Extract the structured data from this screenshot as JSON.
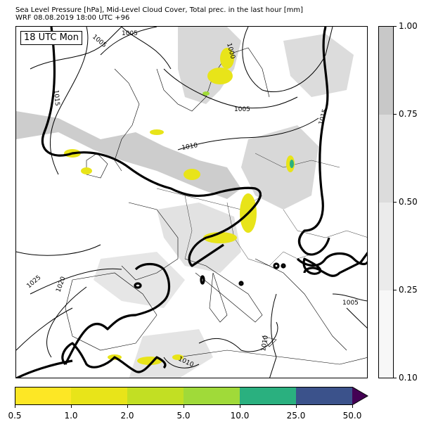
{
  "title_line1": "Sea Level Pressure [hPa], Mid-Level Cloud Cover, Total prec. in the last hour [mm]",
  "title_line2": "WRF 08.08.2019 18:00 UTC +96",
  "time_label": "18 UTC Mon",
  "cloud_colorbar": {
    "ticks": [
      "1.00",
      "0.75",
      "0.50",
      "0.25",
      "0.10"
    ],
    "colors": [
      "#c8c8c8",
      "#dcdcdc",
      "#ebebeb",
      "#f7f7f7"
    ]
  },
  "precip_colorbar": {
    "ticks": [
      "0.5",
      "1.0",
      "2.0",
      "5.0",
      "10.0",
      "25.0",
      "50.0"
    ],
    "colors": [
      "#fde725",
      "#e8e419",
      "#c2df23",
      "#a0da39",
      "#2ab07f",
      "#3b528b",
      "#440154"
    ]
  },
  "isobar_labels": [
    "1000",
    "1005",
    "1005",
    "1005",
    "1010",
    "1010",
    "1010",
    "1015",
    "1015",
    "1020",
    "1025",
    "1005"
  ],
  "chart_data": {
    "type": "map",
    "title": "Sea Level Pressure [hPa], Mid-Level Cloud Cover, Total prec. in the last hour [mm]",
    "subtitle": "WRF 08.08.2019 18:00 UTC +96",
    "fields": [
      "Sea Level Pressure [hPa]",
      "Mid-Level Cloud Cover",
      "Total prec. in the last hour [mm]"
    ],
    "cloud_cover_levels": [
      0.1,
      0.25,
      0.5,
      0.75,
      1.0
    ],
    "precip_levels_mm": [
      0.5,
      1.0,
      2.0,
      5.0,
      10.0,
      25.0,
      50.0
    ],
    "isobar_levels_hpa": [
      1000,
      1005,
      1010,
      1015,
      1020,
      1025
    ],
    "highlighted_isobar_hpa": 1015
  }
}
